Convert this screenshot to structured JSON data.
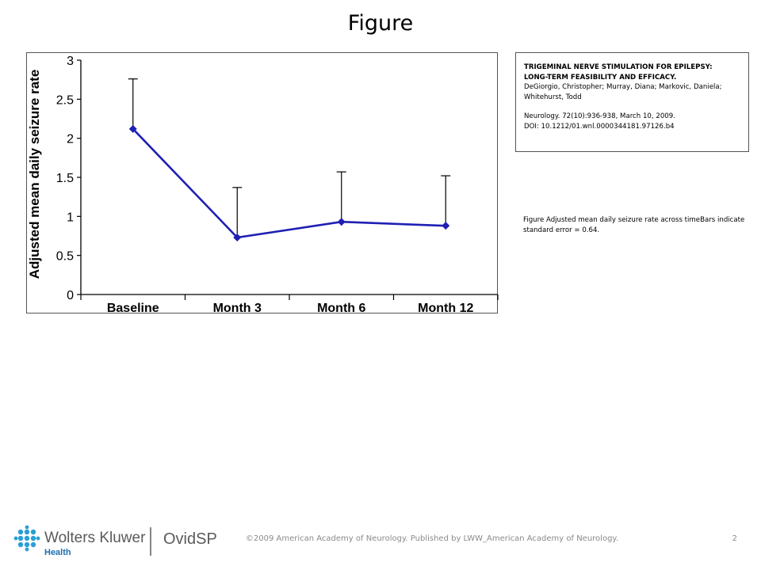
{
  "slide": {
    "title": "Figure",
    "page_number": "2",
    "copyright": "©2009 American Academy of Neurology.  Published by LWW_American Academy of Neurology."
  },
  "citation": {
    "title_line1": "TRIGEMINAL NERVE STIMULATION FOR EPILEPSY:",
    "title_line2": "LONG-TERM FEASIBILITY AND EFFICACY.",
    "authors": "DeGiorgio, Christopher; Murray, Diana; Markovic, Daniela; Whitehurst, Todd",
    "journal": "Neurology. 72(10):936-938, March 10, 2009.",
    "doi": "DOI: 10.1212/01.wnl.0000344181.97126.b4"
  },
  "caption": "Figure  Adjusted mean daily seizure rate across timeBars indicate standard error = 0.64.",
  "logo": {
    "brand": "Wolters Kluwer",
    "sub": "Health",
    "product": "OvidSP",
    "brand_color": "#2a9fd6",
    "text_color": "#5a5a5a",
    "health_color": "#1a6fb0"
  },
  "chart_data": {
    "type": "line",
    "categories": [
      "Baseline",
      "Month 3",
      "Month 6",
      "Month 12"
    ],
    "series": [
      {
        "values": [
          2.12,
          0.73,
          0.93,
          0.88
        ]
      }
    ],
    "error_upper": [
      2.76,
      1.37,
      1.57,
      1.52
    ],
    "xlabel": "",
    "ylabel": "Adjusted mean daily seizure rate",
    "ylim": [
      0,
      3
    ],
    "yticks": [
      "0",
      "0.5",
      "1",
      "1.5",
      "2",
      "2.5",
      "3"
    ],
    "line_color": "#1f1fb4",
    "grid": false
  }
}
